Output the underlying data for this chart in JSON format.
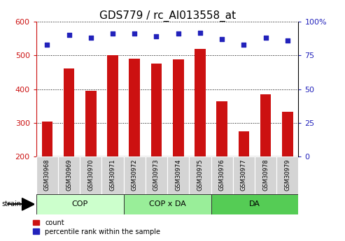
{
  "title": "GDS779 / rc_AI013558_at",
  "samples": [
    "GSM30968",
    "GSM30969",
    "GSM30970",
    "GSM30971",
    "GSM30972",
    "GSM30973",
    "GSM30974",
    "GSM30975",
    "GSM30976",
    "GSM30977",
    "GSM30978",
    "GSM30979"
  ],
  "bar_values": [
    305,
    462,
    395,
    500,
    490,
    475,
    488,
    520,
    365,
    275,
    385,
    332
  ],
  "pct_values": [
    83,
    90,
    88,
    91,
    91,
    89,
    91,
    92,
    87,
    83,
    88,
    86
  ],
  "groups": [
    {
      "label": "COP",
      "start": 0,
      "end": 4,
      "color": "#ccffcc"
    },
    {
      "label": "COP x DA",
      "start": 4,
      "end": 8,
      "color": "#99ee99"
    },
    {
      "label": "DA",
      "start": 8,
      "end": 12,
      "color": "#55cc55"
    }
  ],
  "ylim": [
    200,
    600
  ],
  "yticks": [
    200,
    300,
    400,
    500,
    600
  ],
  "right_yticks": [
    0,
    25,
    50,
    75,
    100
  ],
  "right_ylim": [
    0,
    100
  ],
  "bar_color": "#cc1111",
  "dot_color": "#2222bb",
  "tick_color_left": "#cc1111",
  "tick_color_right": "#2222bb",
  "title_fontsize": 11,
  "tick_fontsize": 8,
  "sample_fontsize": 6,
  "group_fontsize": 8,
  "legend_fontsize": 7,
  "bar_width": 0.5
}
